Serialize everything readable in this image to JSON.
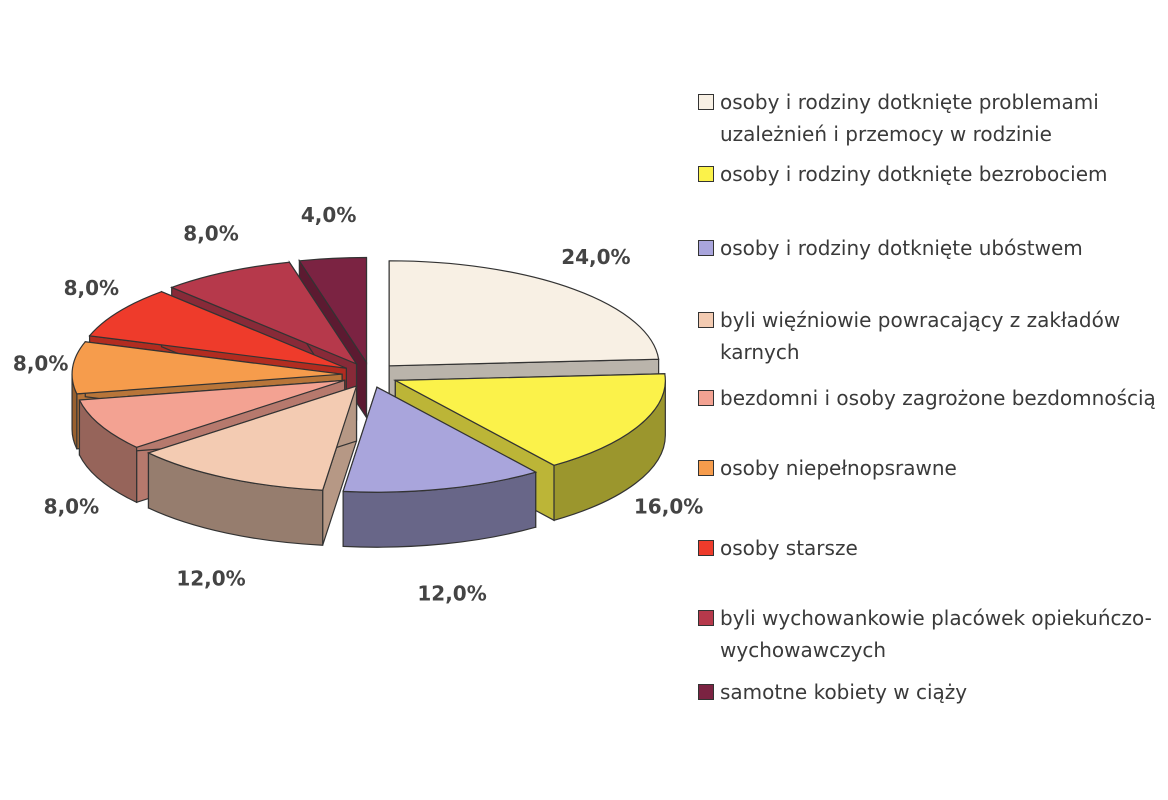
{
  "chart_data": {
    "type": "pie3d",
    "categories": [
      "osoby i rodziny dotknięte problemami uzależnień i przemocy w rodzinie",
      "osoby i rodziny dotknięte bezrobociem",
      "osoby i rodziny dotknięte ubóstwem",
      "byli więźniowie powracający z zakładów karnych",
      "bezdomni i osoby zagrożone bezdomnością",
      "osoby niepełnopsrawne",
      "osoby starsze",
      "byli wychowankowie placówek opiekuńczo-wychowawczych",
      "samotne kobiety w ciąży"
    ],
    "values": [
      24,
      16,
      12,
      12,
      8,
      8,
      8,
      8,
      4
    ],
    "value_labels": [
      "24,0%",
      "16,0%",
      "12,0%",
      "12,0%",
      "8,0%",
      "8,0%",
      "8,0%",
      "8,0%",
      "4,0%"
    ],
    "colors": [
      "#f8f0e4",
      "#fbf24a",
      "#a9a5dc",
      "#f3cbb2",
      "#f3a292",
      "#f69c4c",
      "#ee3b2b",
      "#b6394b",
      "#7b2342"
    ]
  }
}
